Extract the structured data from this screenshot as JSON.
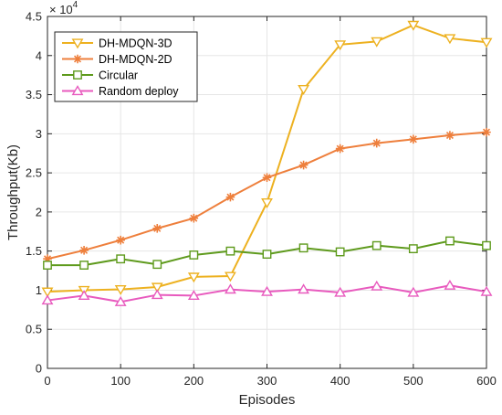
{
  "chart_data": {
    "type": "line",
    "xlabel": "Episodes",
    "ylabel": "Throughput(Kb)",
    "y_exponent_base": "× 10",
    "y_exponent_power": "4",
    "x": [
      0,
      50,
      100,
      150,
      200,
      250,
      300,
      350,
      400,
      450,
      500,
      550,
      600
    ],
    "xlim": [
      0,
      600
    ],
    "ylim": [
      0,
      45000
    ],
    "xticks": [
      0,
      100,
      200,
      300,
      400,
      500,
      600
    ],
    "xtick_labels": [
      "0",
      "100",
      "200",
      "300",
      "400",
      "500",
      "600"
    ],
    "yticks": [
      0,
      5000,
      10000,
      15000,
      20000,
      25000,
      30000,
      35000,
      40000,
      45000
    ],
    "ytick_labels": [
      "0",
      "0.5",
      "1",
      "1.5",
      "2",
      "2.5",
      "3",
      "3.5",
      "4",
      "4.5"
    ],
    "grid": true,
    "legend_position": "top-left",
    "series": [
      {
        "name": "DH-MDQN-3D",
        "color": "#EDB120",
        "marker": "triangle-down",
        "values": [
          9800,
          10000,
          10100,
          10400,
          11700,
          11800,
          21200,
          35700,
          41400,
          41800,
          43900,
          42200,
          41700
        ]
      },
      {
        "name": "DH-MDQN-2D",
        "color": "#EE7F3C",
        "marker": "asterisk",
        "values": [
          14000,
          15100,
          16400,
          17900,
          19200,
          21900,
          24400,
          26000,
          28100,
          28800,
          29300,
          29800,
          30200
        ]
      },
      {
        "name": "Circular",
        "color": "#5E9A1C",
        "marker": "square",
        "values": [
          13200,
          13200,
          14000,
          13300,
          14500,
          15000,
          14600,
          15400,
          14900,
          15700,
          15300,
          16300,
          15700
        ]
      },
      {
        "name": "Random deploy",
        "color": "#E85ABE",
        "marker": "triangle-up",
        "values": [
          8700,
          9300,
          8500,
          9400,
          9300,
          10100,
          9800,
          10100,
          9700,
          10500,
          9700,
          10600,
          9800
        ]
      }
    ]
  }
}
